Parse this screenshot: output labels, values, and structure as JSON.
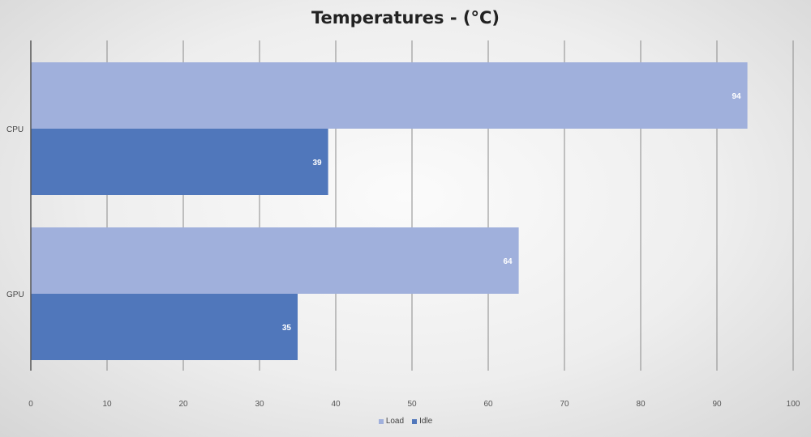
{
  "chart_data": {
    "type": "bar",
    "orientation": "horizontal",
    "title": "Temperatures - (°C)",
    "categories": [
      "CPU",
      "GPU"
    ],
    "series": [
      {
        "name": "Load",
        "values": [
          94,
          64
        ],
        "color": "#a0b0dc"
      },
      {
        "name": "Idle",
        "values": [
          39,
          35
        ],
        "color": "#5077bb"
      }
    ],
    "xlim": [
      0,
      100
    ],
    "x_ticks": [
      0,
      10,
      20,
      30,
      40,
      50,
      60,
      70,
      80,
      90,
      100
    ],
    "grid": true,
    "legend_position": "bottom",
    "data_labels": true
  }
}
